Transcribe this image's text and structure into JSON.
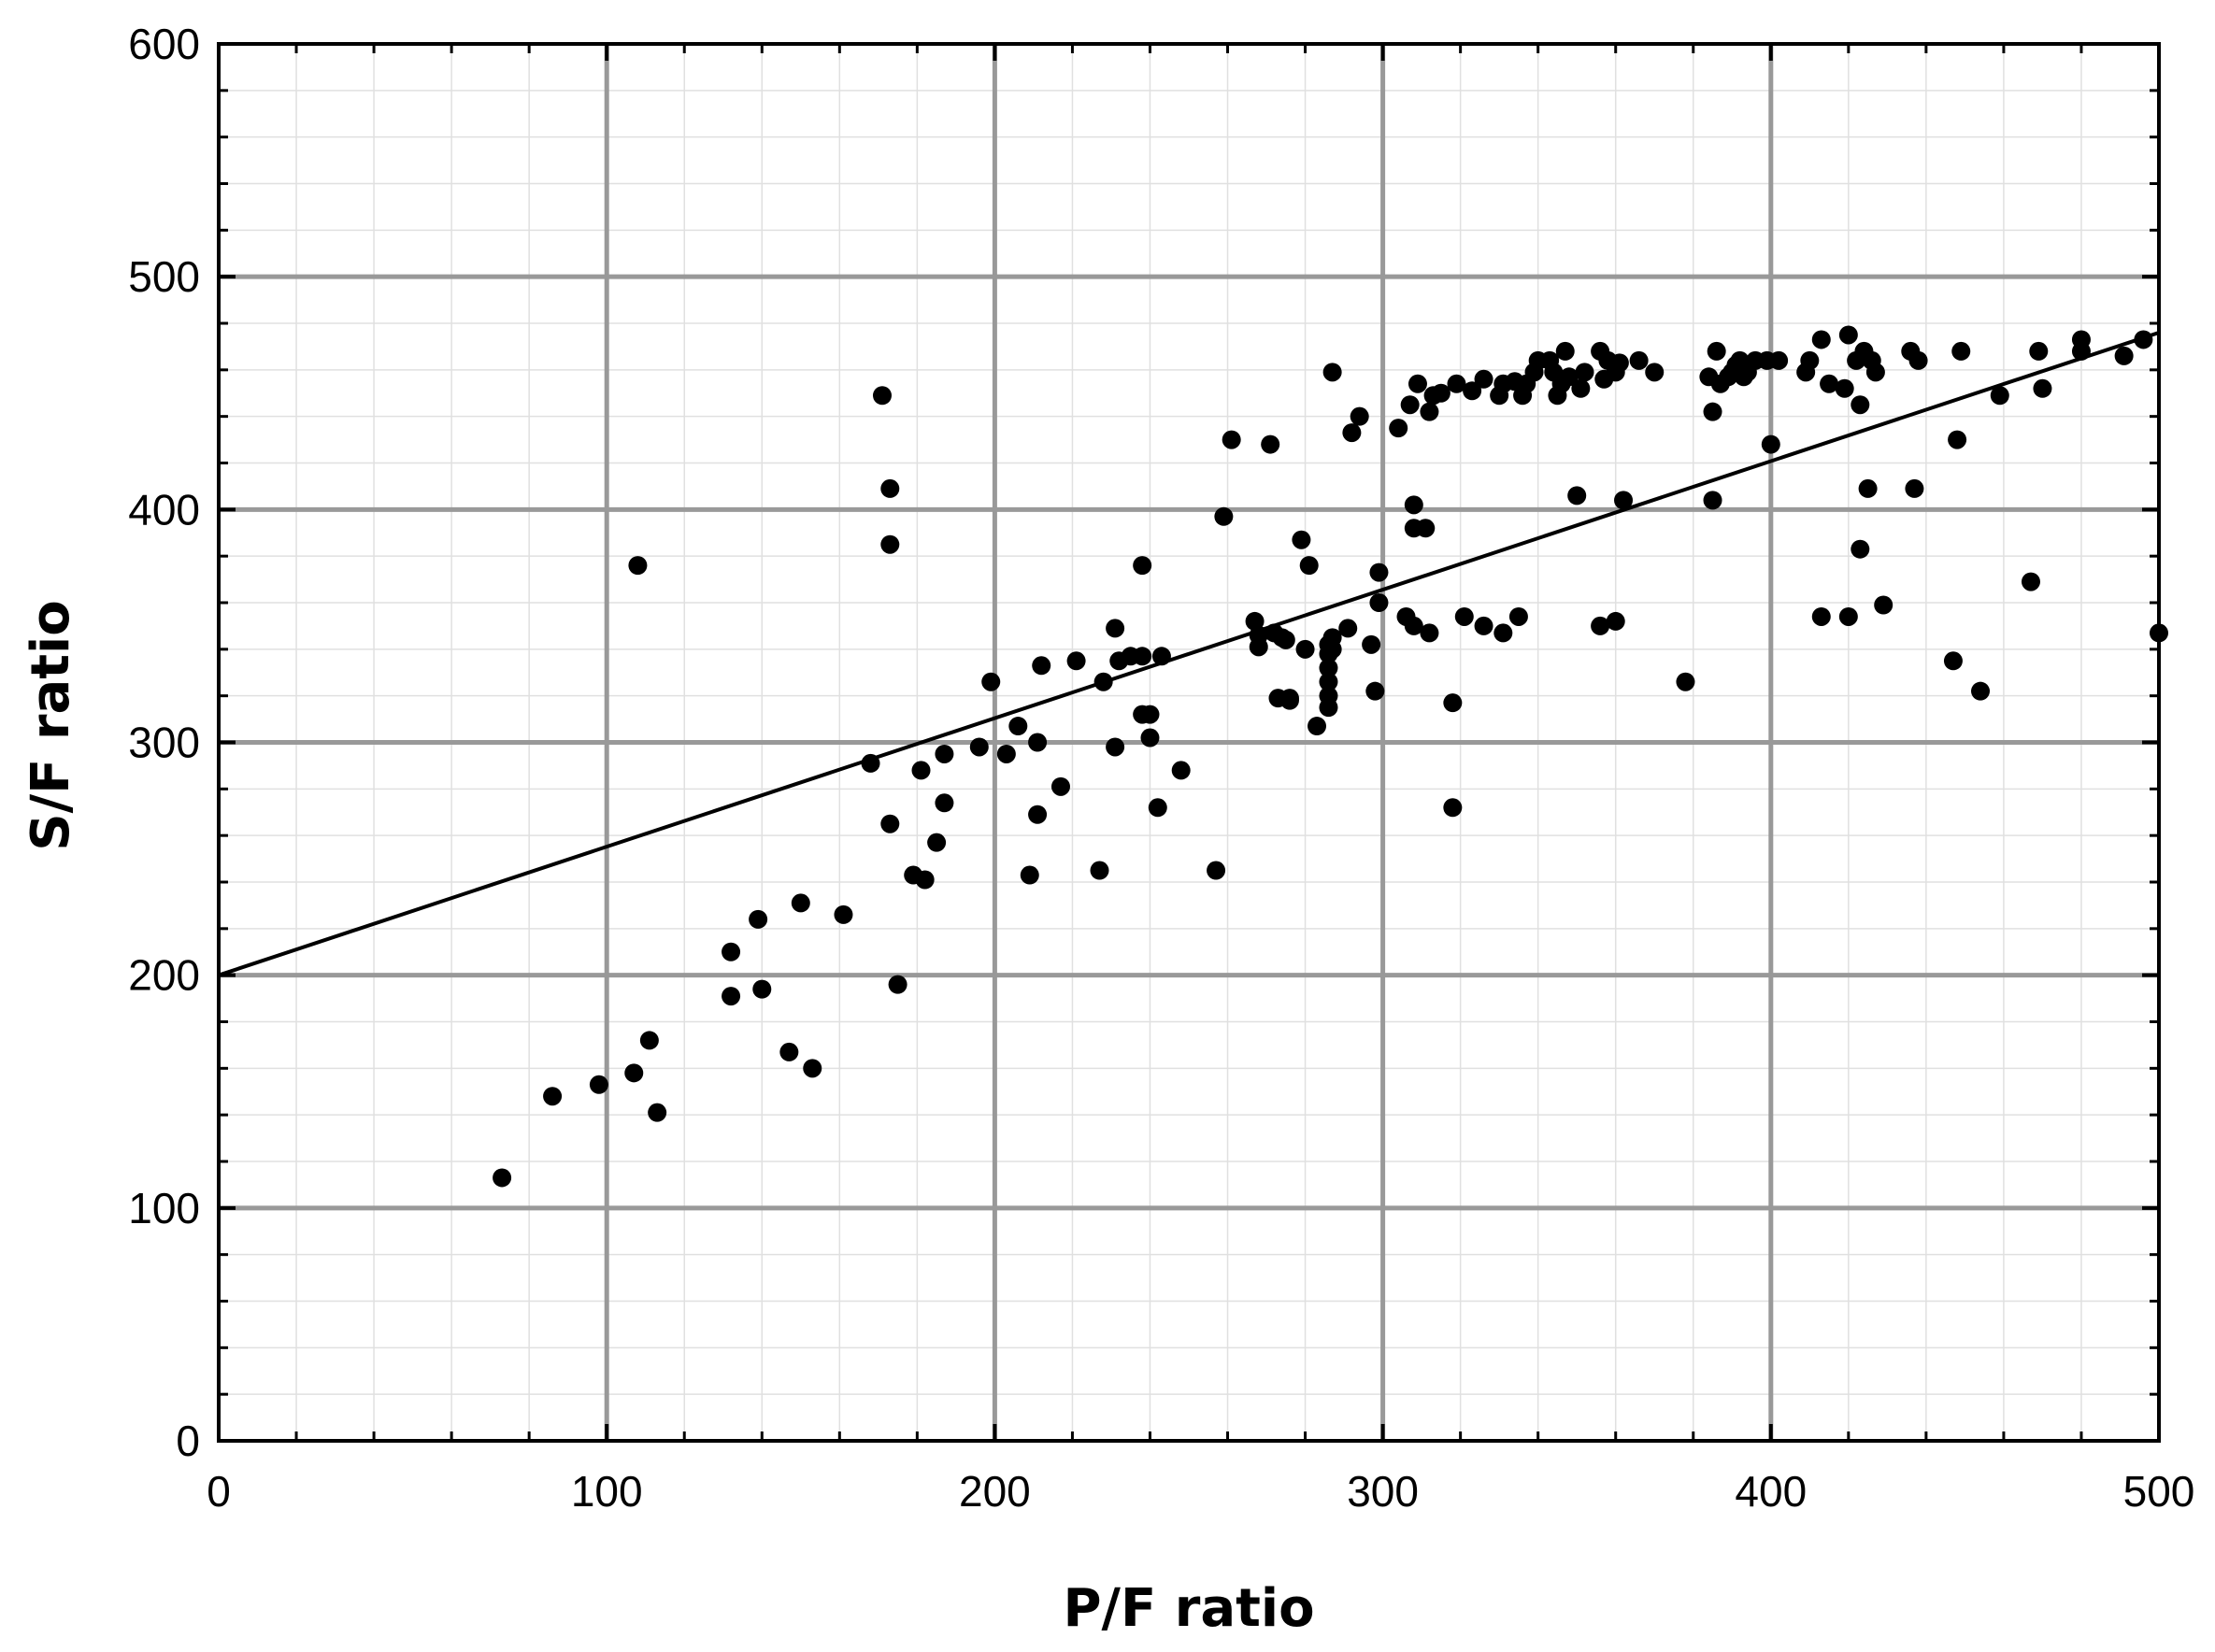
{
  "chart_data": {
    "type": "scatter",
    "title": "",
    "xlabel": "P/F ratio",
    "ylabel": "S/F ratio",
    "xlim": [
      0,
      500
    ],
    "ylim": [
      0,
      600
    ],
    "x_ticks": [
      0,
      100,
      200,
      300,
      400,
      500
    ],
    "y_ticks": [
      0,
      100,
      200,
      300,
      400,
      500,
      600
    ],
    "grid": true,
    "legend": "none",
    "point_color": "#000000",
    "fit_line": {
      "x": [
        0,
        500
      ],
      "y": [
        200,
        476
      ]
    },
    "series": [
      {
        "points": [
          [
            73,
            113
          ],
          [
            86,
            148
          ],
          [
            98,
            153
          ],
          [
            107,
            158
          ],
          [
            108,
            376
          ],
          [
            111,
            172
          ],
          [
            113,
            141
          ],
          [
            132,
            210
          ],
          [
            132,
            191
          ],
          [
            139,
            224
          ],
          [
            140,
            194
          ],
          [
            147,
            167
          ],
          [
            150,
            231
          ],
          [
            153,
            160
          ],
          [
            161,
            226
          ],
          [
            168,
            291
          ],
          [
            171,
            449
          ],
          [
            173,
            409
          ],
          [
            173,
            385
          ],
          [
            173,
            265
          ],
          [
            175,
            196
          ],
          [
            179,
            243
          ],
          [
            181,
            288
          ],
          [
            182,
            241
          ],
          [
            185,
            257
          ],
          [
            187,
            295
          ],
          [
            187,
            274
          ],
          [
            196,
            298
          ],
          [
            199,
            326
          ],
          [
            203,
            295
          ],
          [
            206,
            307
          ],
          [
            209,
            243
          ],
          [
            211,
            300
          ],
          [
            211,
            269
          ],
          [
            212,
            333
          ],
          [
            217,
            281
          ],
          [
            221,
            335
          ],
          [
            227,
            245
          ],
          [
            228,
            326
          ],
          [
            231,
            349
          ],
          [
            231,
            298
          ],
          [
            232,
            335
          ],
          [
            235,
            337
          ],
          [
            238,
            337
          ],
          [
            238,
            376
          ],
          [
            238,
            312
          ],
          [
            240,
            302
          ],
          [
            240,
            312
          ],
          [
            242,
            272
          ],
          [
            243,
            337
          ],
          [
            248,
            288
          ],
          [
            257,
            245
          ],
          [
            259,
            397
          ],
          [
            261,
            430
          ],
          [
            267,
            352
          ],
          [
            268,
            346
          ],
          [
            268,
            341
          ],
          [
            271,
            428
          ],
          [
            272,
            347
          ],
          [
            273,
            319
          ],
          [
            274,
            345
          ],
          [
            275,
            344
          ],
          [
            276,
            318
          ],
          [
            276,
            319
          ],
          [
            279,
            387
          ],
          [
            280,
            340
          ],
          [
            281,
            376
          ],
          [
            283,
            307
          ],
          [
            286,
            315
          ],
          [
            286,
            320
          ],
          [
            286,
            326
          ],
          [
            286,
            332
          ],
          [
            286,
            338
          ],
          [
            286,
            342
          ],
          [
            287,
            345
          ],
          [
            287,
            340
          ],
          [
            287,
            459
          ],
          [
            291,
            349
          ],
          [
            292,
            433
          ],
          [
            294,
            440
          ],
          [
            297,
            342
          ],
          [
            298,
            322
          ],
          [
            299,
            373
          ],
          [
            299,
            360
          ],
          [
            304,
            435
          ],
          [
            306,
            354
          ],
          [
            307,
            445
          ],
          [
            308,
            402
          ],
          [
            308,
            392
          ],
          [
            308,
            350
          ],
          [
            309,
            454
          ],
          [
            311,
            392
          ],
          [
            312,
            442
          ],
          [
            312,
            347
          ],
          [
            313,
            449
          ],
          [
            315,
            450
          ],
          [
            318,
            317
          ],
          [
            318,
            272
          ],
          [
            319,
            454
          ],
          [
            321,
            354
          ],
          [
            323,
            451
          ],
          [
            326,
            456
          ],
          [
            326,
            350
          ],
          [
            330,
            449
          ],
          [
            331,
            454
          ],
          [
            331,
            347
          ],
          [
            334,
            455
          ],
          [
            335,
            354
          ],
          [
            336,
            449
          ],
          [
            337,
            454
          ],
          [
            339,
            459
          ],
          [
            340,
            464
          ],
          [
            343,
            464
          ],
          [
            344,
            459
          ],
          [
            345,
            449
          ],
          [
            346,
            454
          ],
          [
            347,
            468
          ],
          [
            348,
            457
          ],
          [
            350,
            406
          ],
          [
            351,
            452
          ],
          [
            352,
            459
          ],
          [
            356,
            350
          ],
          [
            356,
            468
          ],
          [
            357,
            456
          ],
          [
            358,
            464
          ],
          [
            360,
            352
          ],
          [
            360,
            459
          ],
          [
            361,
            463
          ],
          [
            362,
            404
          ],
          [
            366,
            464
          ],
          [
            370,
            459
          ],
          [
            378,
            326
          ],
          [
            384,
            457
          ],
          [
            385,
            442
          ],
          [
            385,
            404
          ],
          [
            386,
            468
          ],
          [
            387,
            454
          ],
          [
            389,
            457
          ],
          [
            390,
            459
          ],
          [
            391,
            462
          ],
          [
            392,
            464
          ],
          [
            393,
            457
          ],
          [
            394,
            459
          ],
          [
            396,
            464
          ],
          [
            399,
            464
          ],
          [
            400,
            428
          ],
          [
            402,
            464
          ],
          [
            409,
            459
          ],
          [
            410,
            464
          ],
          [
            413,
            473
          ],
          [
            413,
            354
          ],
          [
            415,
            454
          ],
          [
            419,
            452
          ],
          [
            420,
            475
          ],
          [
            420,
            354
          ],
          [
            422,
            464
          ],
          [
            423,
            445
          ],
          [
            423,
            383
          ],
          [
            424,
            468
          ],
          [
            425,
            409
          ],
          [
            426,
            464
          ],
          [
            427,
            459
          ],
          [
            429,
            359
          ],
          [
            436,
            468
          ],
          [
            437,
            409
          ],
          [
            438,
            464
          ],
          [
            447,
            335
          ],
          [
            448,
            430
          ],
          [
            449,
            468
          ],
          [
            454,
            322
          ],
          [
            459,
            449
          ],
          [
            467,
            369
          ],
          [
            469,
            468
          ],
          [
            470,
            452
          ],
          [
            480,
            468
          ],
          [
            480,
            473
          ],
          [
            491,
            466
          ],
          [
            496,
            473
          ],
          [
            500,
            347
          ]
        ]
      }
    ]
  }
}
